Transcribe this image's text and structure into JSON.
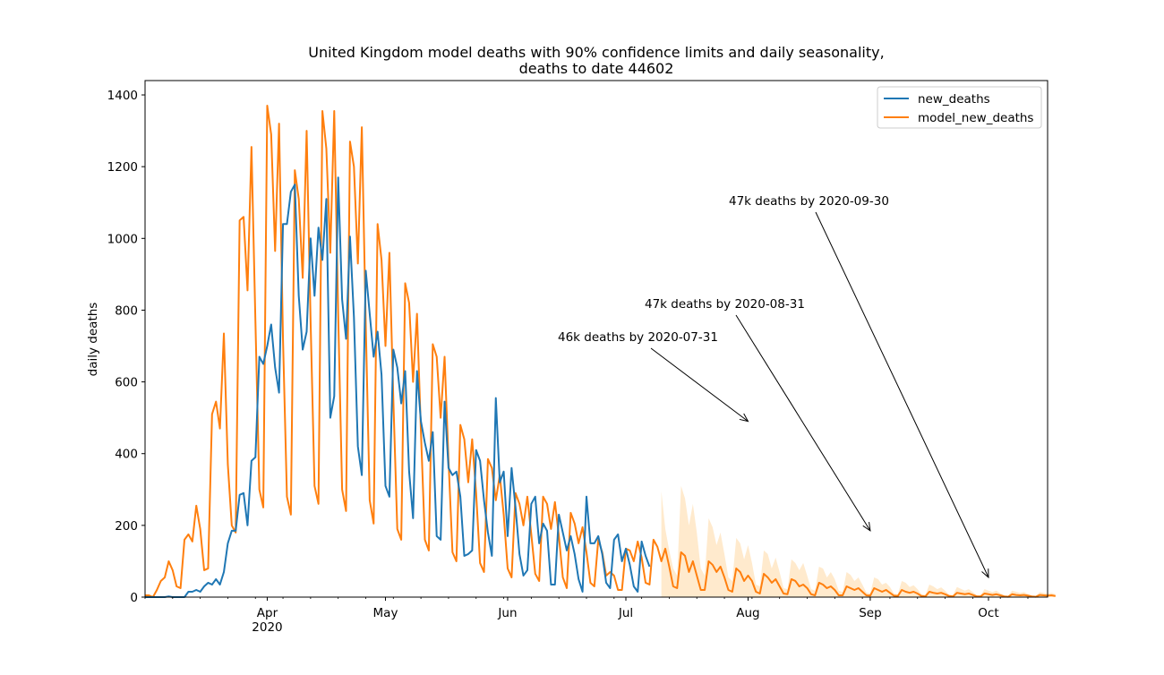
{
  "chart_data": {
    "type": "line",
    "title_line1": "United Kingdom model deaths with 90% confidence limits and daily seasonality,",
    "title_line2": "deaths to date 44602",
    "xlabel": "",
    "ylabel": "daily deaths",
    "x_start": "2020-03-01",
    "x_end": "2020-10-16",
    "xlim": [
      "2020-03-01",
      "2020-10-16"
    ],
    "ylim": [
      0,
      1440
    ],
    "yticks": [
      0,
      200,
      400,
      600,
      800,
      1000,
      1200,
      1400
    ],
    "xticks": [
      {
        "date": "2020-04-01",
        "label": "Apr",
        "sublabel": "2020"
      },
      {
        "date": "2020-05-01",
        "label": "May",
        "sublabel": ""
      },
      {
        "date": "2020-06-01",
        "label": "Jun",
        "sublabel": ""
      },
      {
        "date": "2020-07-01",
        "label": "Jul",
        "sublabel": ""
      },
      {
        "date": "2020-08-01",
        "label": "Aug",
        "sublabel": ""
      },
      {
        "date": "2020-09-01",
        "label": "Sep",
        "sublabel": ""
      },
      {
        "date": "2020-10-01",
        "label": "Oct",
        "sublabel": ""
      }
    ],
    "legend_position": "top-right",
    "grid": false,
    "series": [
      {
        "name": "new_deaths",
        "color": "#1f77b4",
        "x_start": "2020-03-01",
        "values": [
          0,
          0,
          0,
          0,
          0,
          0,
          2,
          0,
          0,
          0,
          0,
          15,
          15,
          20,
          15,
          30,
          40,
          35,
          50,
          35,
          70,
          150,
          185,
          185,
          285,
          290,
          200,
          380,
          390,
          670,
          650,
          700,
          760,
          640,
          570,
          1040,
          1040,
          1130,
          1150,
          840,
          690,
          740,
          1000,
          840,
          1030,
          940,
          1110,
          500,
          560,
          1170,
          830,
          720,
          1005,
          780,
          420,
          340,
          910,
          790,
          670,
          740,
          620,
          310,
          280,
          690,
          640,
          540,
          630,
          350,
          220,
          630,
          490,
          430,
          380,
          460,
          170,
          160,
          545,
          360,
          340,
          350,
          280,
          115,
          120,
          130,
          410,
          380,
          270,
          180,
          115,
          555,
          320,
          350,
          170,
          360,
          250,
          120,
          60,
          75,
          260,
          280,
          150,
          205,
          185,
          35,
          35,
          230,
          180,
          130,
          170,
          120,
          50,
          15,
          280,
          150,
          150,
          170,
          120,
          40,
          25,
          160,
          175,
          100,
          135,
          90,
          30,
          15,
          155,
          115,
          85
        ]
      },
      {
        "name": "model_new_deaths",
        "color": "#ff7f0e",
        "x_start": "2020-03-01",
        "values": [
          5,
          5,
          0,
          20,
          45,
          55,
          100,
          75,
          30,
          25,
          160,
          175,
          155,
          255,
          190,
          75,
          80,
          510,
          545,
          470,
          735,
          370,
          200,
          180,
          1050,
          1060,
          855,
          1255,
          770,
          300,
          250,
          1370,
          1290,
          965,
          1320,
          720,
          280,
          230,
          1190,
          1110,
          890,
          1300,
          770,
          310,
          260,
          1355,
          1250,
          960,
          1355,
          790,
          300,
          240,
          1270,
          1200,
          930,
          1310,
          760,
          270,
          205,
          1040,
          940,
          700,
          960,
          550,
          190,
          160,
          875,
          820,
          600,
          790,
          460,
          160,
          130,
          705,
          670,
          500,
          670,
          380,
          125,
          100,
          480,
          440,
          320,
          440,
          290,
          95,
          70,
          385,
          360,
          270,
          340,
          230,
          80,
          55,
          290,
          260,
          200,
          280,
          175,
          65,
          45,
          280,
          260,
          190,
          265,
          170,
          55,
          25,
          235,
          205,
          150,
          195,
          125,
          40,
          30,
          160,
          125,
          60,
          70,
          60,
          20,
          20,
          135,
          130,
          100,
          155,
          110,
          40,
          35,
          160,
          140,
          100,
          135,
          85,
          30,
          25,
          125,
          115,
          70,
          100,
          60,
          20,
          20,
          100,
          90,
          70,
          85,
          55,
          20,
          15,
          80,
          70,
          45,
          60,
          45,
          15,
          10,
          65,
          55,
          40,
          50,
          30,
          10,
          8,
          50,
          45,
          30,
          35,
          25,
          8,
          5,
          40,
          35,
          25,
          30,
          20,
          5,
          5,
          30,
          25,
          20,
          25,
          15,
          5,
          4,
          25,
          20,
          15,
          20,
          12,
          4,
          3,
          20,
          15,
          12,
          15,
          10,
          3,
          2,
          15,
          12,
          10,
          12,
          8,
          3,
          2,
          12,
          10,
          8,
          10,
          6,
          2,
          2,
          10,
          8,
          6,
          8,
          5,
          2,
          1,
          8,
          6,
          5,
          6,
          4,
          2,
          1,
          6,
          5,
          4,
          5,
          3
        ]
      }
    ],
    "confidence_band": {
      "name": "90% confidence limits",
      "color": "#ffe6c4",
      "x_start": "2020-07-10",
      "upper": [
        295,
        190,
        130,
        80,
        60,
        310,
        275,
        200,
        260,
        180,
        80,
        60,
        220,
        195,
        145,
        180,
        120,
        55,
        45,
        165,
        150,
        105,
        145,
        95,
        35,
        30,
        130,
        120,
        80,
        110,
        70,
        25,
        22,
        105,
        95,
        75,
        95,
        60,
        22,
        18,
        85,
        80,
        55,
        70,
        50,
        18,
        14,
        70,
        62,
        45,
        55,
        35,
        13,
        10,
        55,
        50,
        35,
        40,
        28,
        10,
        8,
        45,
        40,
        28,
        33,
        22,
        8,
        7,
        35,
        30,
        22,
        27,
        18,
        7,
        6,
        28,
        23,
        18,
        22,
        14,
        6,
        5,
        22,
        18,
        14,
        18,
        11,
        5,
        4,
        18,
        15,
        12,
        14,
        9,
        4,
        3,
        14,
        12,
        10,
        12,
        8
      ]
    },
    "annotations": [
      {
        "text": "46k deaths by 2020-07-31",
        "arrow_date": "2020-08-01",
        "arrow_value": 490
      },
      {
        "text": "47k deaths by 2020-08-31",
        "arrow_date": "2020-09-01",
        "arrow_value": 185
      },
      {
        "text": "47k deaths by 2020-09-30",
        "arrow_date": "2020-10-01",
        "arrow_value": 55
      }
    ]
  }
}
